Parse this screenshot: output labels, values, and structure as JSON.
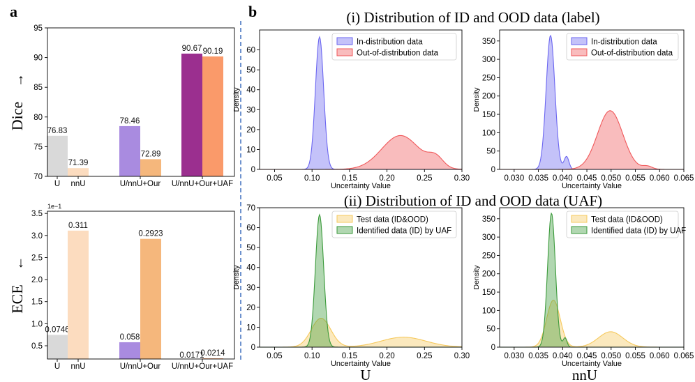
{
  "panel_labels": {
    "a": "a",
    "b": "b"
  },
  "section_titles": {
    "label": "(i) Distribution of ID and OOD data (label)",
    "uaf": "(ii) Distribution of ID and OOD data (UAF)"
  },
  "column_labels": {
    "left": "U",
    "right": "nnU"
  },
  "colors": {
    "gray": "#d9d9d9",
    "peach_light": "#fcdcbf",
    "lavender": "#a98be0",
    "peach": "#f5b77c",
    "purple": "#9b2f8f",
    "salmon": "#fa9a6a",
    "blue": "#6b66f0",
    "red": "#f0585a",
    "yellow": "#f6c95c",
    "green": "#3b9a3b",
    "divider": "#4a78c2"
  },
  "chart_data": [
    {
      "id": "dice",
      "type": "bar",
      "ylabel": "Dice",
      "ylabel_arrow": "↑",
      "ylim": [
        70,
        95
      ],
      "yticks": [
        "70",
        "75",
        "80",
        "85",
        "90",
        "95"
      ],
      "groups": [
        {
          "label_left": "U",
          "label_right": "nnU",
          "values": [
            76.83,
            71.39
          ],
          "value_labels": [
            "76.83",
            "71.39"
          ],
          "colors": [
            "#d9d9d9",
            "#fcdcbf"
          ]
        },
        {
          "label": "U/nnU+Our",
          "values": [
            78.46,
            72.89
          ],
          "value_labels": [
            "78.46",
            "72.89"
          ],
          "colors": [
            "#a98be0",
            "#f5b77c"
          ]
        },
        {
          "label": "U/nnU+Our+UAF",
          "values": [
            90.67,
            90.19
          ],
          "value_labels": [
            "90.67",
            "90.19"
          ],
          "colors": [
            "#9b2f8f",
            "#fa9a6a"
          ]
        }
      ]
    },
    {
      "id": "ece",
      "type": "bar",
      "ylabel": "ECE",
      "ylabel_arrow": "↓",
      "scale_note": "1e−1",
      "ylim": [
        0.2,
        3.55
      ],
      "yticks": [
        "0.5",
        "1.0",
        "1.5",
        "2.0",
        "2.5",
        "3.0",
        "3.5"
      ],
      "groups": [
        {
          "label_left": "U",
          "label_right": "nnU",
          "values": [
            0.746,
            3.11
          ],
          "value_labels": [
            "0.0746",
            "0.311"
          ],
          "colors": [
            "#d9d9d9",
            "#fcdcbf"
          ]
        },
        {
          "label": "U/nnU+Our",
          "values": [
            0.58,
            2.923
          ],
          "value_labels": [
            "0.058",
            "0.2923"
          ],
          "colors": [
            "#a98be0",
            "#f5b77c"
          ]
        },
        {
          "label": "U/nnU+Our+UAF",
          "values": [
            0.171,
            0.214
          ],
          "value_labels": [
            "0.0171",
            "0.0214"
          ],
          "colors": [
            "#9b2f8f",
            "#fa9a6a"
          ]
        }
      ]
    },
    {
      "id": "density-label-u",
      "type": "area",
      "xlabel": "Uncertainty Value",
      "ylabel": "Density",
      "xlim": [
        0.03,
        0.3
      ],
      "ylim": [
        0,
        70
      ],
      "xticks": [
        "0.05",
        "0.10",
        "0.15",
        "0.20",
        "0.25",
        "0.30"
      ],
      "yticks": [
        "0",
        "10",
        "20",
        "30",
        "40",
        "50",
        "60"
      ],
      "series": [
        {
          "name": "In-distribution data",
          "color": "#6b66f0",
          "components": [
            [
              0.11,
              0.0055,
              66.5
            ]
          ]
        },
        {
          "name": "Out-of-distribution data",
          "color": "#f0585a",
          "components": [
            [
              0.218,
              0.025,
              17
            ],
            [
              0.265,
              0.01,
              5
            ]
          ]
        }
      ]
    },
    {
      "id": "density-label-nnu",
      "type": "area",
      "xlabel": "Uncertainty Value",
      "ylabel": "Density",
      "xlim": [
        0.027,
        0.065
      ],
      "ylim": [
        0,
        380
      ],
      "xticks": [
        "0.030",
        "0.035",
        "0.040",
        "0.045",
        "0.050",
        "0.055",
        "0.060",
        "0.065"
      ],
      "yticks": [
        "0",
        "50",
        "100",
        "150",
        "200",
        "250",
        "300",
        "350"
      ],
      "series": [
        {
          "name": "In-distribution data",
          "color": "#6b66f0",
          "components": [
            [
              0.0375,
              0.0009,
              365
            ],
            [
              0.0408,
              0.0005,
              35
            ]
          ]
        },
        {
          "name": "Out-of-distribution data",
          "color": "#f0585a",
          "components": [
            [
              0.0498,
              0.0026,
              160
            ],
            [
              0.0575,
              0.001,
              8
            ]
          ]
        }
      ]
    },
    {
      "id": "density-uaf-u",
      "type": "area",
      "xlabel": "Uncertainty Value",
      "ylabel": "Density",
      "xlim": [
        0.03,
        0.3
      ],
      "ylim": [
        0,
        70
      ],
      "xticks": [
        "0.05",
        "0.10",
        "0.15",
        "0.20",
        "0.25",
        "0.30"
      ],
      "yticks": [
        "0",
        "10",
        "20",
        "30",
        "40",
        "50",
        "60",
        "70"
      ],
      "series": [
        {
          "name": "Test data (ID&OOD)",
          "color": "#f6c95c",
          "components": [
            [
              0.112,
              0.013,
              14.5
            ],
            [
              0.222,
              0.03,
              5
            ]
          ]
        },
        {
          "name": "Identified data (ID) by UAF",
          "color": "#3b9a3b",
          "components": [
            [
              0.11,
              0.0055,
              66.5
            ]
          ]
        }
      ]
    },
    {
      "id": "density-uaf-nnu",
      "type": "area",
      "xlabel": "Uncertainty Value",
      "ylabel": "Density",
      "xlim": [
        0.027,
        0.065
      ],
      "ylim": [
        0,
        380
      ],
      "xticks": [
        "0.030",
        "0.035",
        "0.040",
        "0.045",
        "0.050",
        "0.055",
        "0.060",
        "0.065"
      ],
      "yticks": [
        "0",
        "50",
        "100",
        "150",
        "200",
        "250",
        "300",
        "350"
      ],
      "series": [
        {
          "name": "Test data (ID&OOD)",
          "color": "#f6c95c",
          "components": [
            [
              0.0381,
              0.0014,
              128
            ],
            [
              0.0499,
              0.0025,
              42
            ]
          ]
        },
        {
          "name": "Identified data (ID) by UAF",
          "color": "#3b9a3b",
          "components": [
            [
              0.0377,
              0.0008,
              365
            ],
            [
              0.0405,
              0.0004,
              25
            ]
          ]
        }
      ]
    }
  ]
}
